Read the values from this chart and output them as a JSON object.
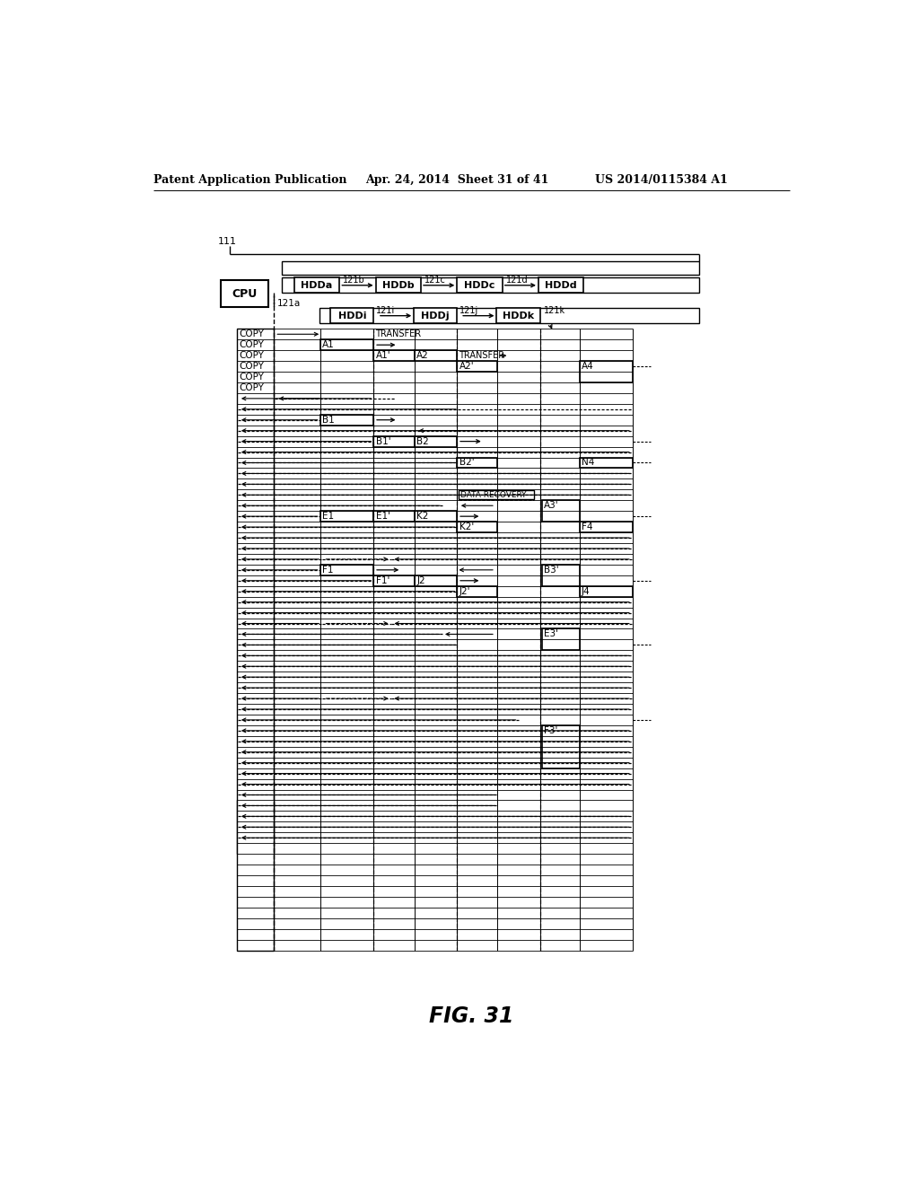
{
  "title_left": "Patent Application Publication",
  "title_mid": "Apr. 24, 2014  Sheet 31 of 41",
  "title_right": "US 2014/0115384 A1",
  "fig_label": "FIG. 31",
  "background": "#ffffff",
  "line_color": "#000000"
}
